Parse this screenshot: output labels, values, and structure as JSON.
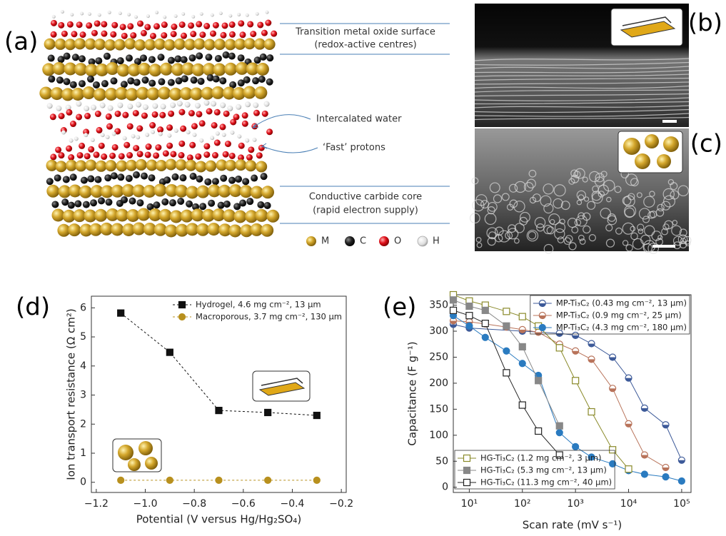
{
  "panels": {
    "a": {
      "label": "(a)",
      "annotations": [
        "Transition metal oxide surface",
        "(redox-active centres)",
        "Intercalated water",
        "‘Fast’ protons",
        "Conductive carbide core",
        "(rapid electron supply)"
      ],
      "legend": [
        "M",
        "C",
        "O",
        "H"
      ]
    },
    "b": {
      "label": "(b)"
    },
    "c": {
      "label": "(c)"
    }
  },
  "chart_data": [
    {
      "type": "line",
      "panel_label": "(d)",
      "x_label": "Potential (V versus Hg/Hg₂SO₄)",
      "y_label": "Ion transport resistance (Ω cm²)",
      "x": [
        -1.1,
        -0.9,
        -0.7,
        -0.5,
        -0.3
      ],
      "series": [
        {
          "name": "Hydrogel, 4.6 mg cm⁻², 13 µm",
          "color": "#111111",
          "marker": "square",
          "marker_fill": "filled",
          "line_style": "dashed",
          "legend_loc": "upper right",
          "values": [
            5.82,
            4.47,
            2.47,
            2.4,
            2.3
          ]
        },
        {
          "name": "Macroporous, 3.7 mg cm⁻², 130 µm",
          "color": "#b8901e",
          "marker": "circle",
          "marker_fill": "filled",
          "line_style": "dashed",
          "legend_loc": "upper right",
          "values": [
            0.07,
            0.07,
            0.07,
            0.07,
            0.07
          ]
        }
      ],
      "xlim": [
        -1.22,
        -0.18
      ],
      "ylim": [
        -0.35,
        6.4
      ],
      "xticks": [
        {
          "value": -1.2,
          "label": "−1.2"
        },
        {
          "value": -1.0,
          "label": "−1.0"
        },
        {
          "value": -0.8,
          "label": "−0.8"
        },
        {
          "value": -0.6,
          "label": "−0.6"
        },
        {
          "value": -0.4,
          "label": "−0.4"
        },
        {
          "value": -0.2,
          "label": "−0.2"
        }
      ],
      "yticks": [
        0,
        1,
        2,
        3,
        4,
        5,
        6
      ],
      "legend_frame": false
    },
    {
      "type": "line",
      "panel_label": "(e)",
      "xscale": "log",
      "x_label": "Scan rate (mV s⁻¹)",
      "y_label": "Capacitance (F g⁻¹)",
      "series": [
        {
          "name": "MP-Ti₃C₂ (0.43 mg cm⁻², 13 µm)",
          "color": "#3d5a99",
          "marker": "circle",
          "marker_fill": "half",
          "line_style": "solid",
          "legend_loc": "upper right",
          "x": [
            5,
            10,
            100,
            500,
            1000,
            2000,
            5000,
            10000,
            20000,
            50000,
            100000
          ],
          "values": [
            313,
            306,
            300,
            296,
            292,
            276,
            250,
            210,
            152,
            120,
            52
          ]
        },
        {
          "name": "MP-Ti₃C₂ (0.9 mg cm⁻², 25 µm)",
          "color": "#b8735a",
          "marker": "circle",
          "marker_fill": "half",
          "line_style": "solid",
          "legend_loc": "upper right",
          "x": [
            5,
            10,
            20,
            50,
            100,
            200,
            500,
            1000,
            2000,
            5000,
            10000,
            20000,
            50000
          ],
          "values": [
            320,
            318,
            314,
            308,
            303,
            298,
            275,
            262,
            246,
            190,
            122,
            62,
            38
          ]
        },
        {
          "name": "MP-Ti₃C₂ (4.3 mg cm⁻², 180 µm)",
          "color": "#2a7bc0",
          "marker": "circle",
          "marker_fill": "filled",
          "line_style": "solid",
          "legend_loc": "upper right",
          "x": [
            5,
            10,
            20,
            50,
            100,
            200,
            500,
            1000,
            2000,
            5000,
            10000,
            20000,
            50000,
            100000
          ],
          "values": [
            330,
            310,
            288,
            262,
            238,
            215,
            105,
            78,
            58,
            45,
            32,
            25,
            20,
            12
          ]
        },
        {
          "name": "HG-Ti₃C₂ (1.2 mg cm⁻², 3 µm)",
          "color": "#8a8a2a",
          "marker": "square",
          "marker_fill": "open",
          "line_style": "solid",
          "legend_loc": "lower left",
          "x": [
            5,
            10,
            20,
            50,
            100,
            200,
            500,
            1000,
            2000,
            5000,
            10000
          ],
          "values": [
            370,
            358,
            350,
            338,
            328,
            310,
            268,
            205,
            145,
            72,
            35
          ]
        },
        {
          "name": "HG-Ti₃C₂ (5.3 mg cm⁻², 13 µm)",
          "color": "#888888",
          "marker": "square",
          "marker_fill": "filled",
          "line_style": "solid",
          "legend_loc": "lower left",
          "x": [
            5,
            10,
            20,
            50,
            100,
            200,
            500
          ],
          "values": [
            360,
            348,
            340,
            310,
            270,
            205,
            118
          ]
        },
        {
          "name": "HG-Ti₃C₂ (11.3 mg cm⁻², 40 µm)",
          "color": "#222222",
          "marker": "square",
          "marker_fill": "open",
          "line_style": "solid",
          "legend_loc": "lower left",
          "x": [
            5,
            10,
            20,
            50,
            100,
            200,
            500
          ],
          "values": [
            340,
            330,
            315,
            220,
            158,
            108,
            62
          ]
        }
      ],
      "xlim": [
        5,
        150000
      ],
      "ylim": [
        -10,
        370
      ],
      "xticks": [
        {
          "value": 10,
          "label": "10¹"
        },
        {
          "value": 100,
          "label": "10²"
        },
        {
          "value": 1000,
          "label": "10³"
        },
        {
          "value": 10000,
          "label": "10⁴"
        },
        {
          "value": 100000,
          "label": "10⁵"
        }
      ],
      "yticks": [
        0,
        50,
        100,
        150,
        200,
        250,
        300,
        350
      ],
      "legend_frame": true
    }
  ]
}
